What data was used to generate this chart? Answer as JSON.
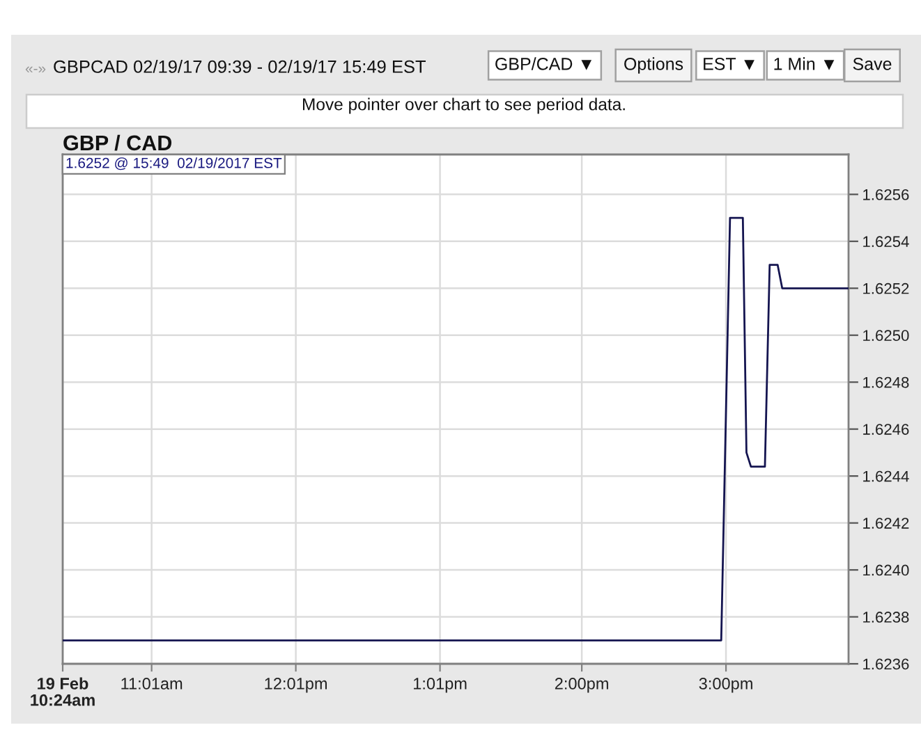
{
  "chart_data": {
    "type": "line",
    "title": "GBP / CAD",
    "subtitle": "GBPCAD 02/19/17 09:39 - 02/19/17 15:49 EST",
    "annotations": [
      "«-»",
      "GBP/CAD ▼",
      "Options",
      "EST ▼",
      "1 Min ▼",
      "Save",
      "Move pointer over chart to see period data.",
      "1.6252 @ 15:49  02/19/2017 EST"
    ],
    "x": [
      10.4,
      14.967,
      15.028,
      15.117,
      15.142,
      15.173,
      15.27,
      15.303,
      15.358,
      15.39,
      15.85
    ],
    "series": [
      {
        "color": "#141450",
        "values": [
          1.6237,
          1.6237,
          1.6255,
          1.6255,
          1.6245,
          1.62444,
          1.62444,
          1.6253,
          1.6253,
          1.6252,
          1.6252
        ]
      }
    ],
    "xlim": [
      10.4,
      15.85
    ],
    "xticks": [
      {
        "value": 10.4,
        "label": "19 Feb\n10:24am"
      },
      {
        "value": 11.0167,
        "label": "11:01am"
      },
      {
        "value": 12.0167,
        "label": "12:01pm"
      },
      {
        "value": 13.0167,
        "label": "1:01pm"
      },
      {
        "value": 14.0,
        "label": "2:00pm"
      },
      {
        "value": 15.0,
        "label": "3:00pm"
      }
    ],
    "ylim": [
      1.6236,
      1.62577
    ],
    "yticks": [
      1.6236,
      1.6238,
      {
        "value": 1.624,
        "label": "1.6240"
      },
      1.6242,
      1.6244,
      1.6246,
      1.6248,
      {
        "value": 1.625,
        "label": "1.6250"
      },
      1.6252,
      1.6254,
      1.6256
    ],
    "grid": true,
    "line_style": "solid"
  }
}
